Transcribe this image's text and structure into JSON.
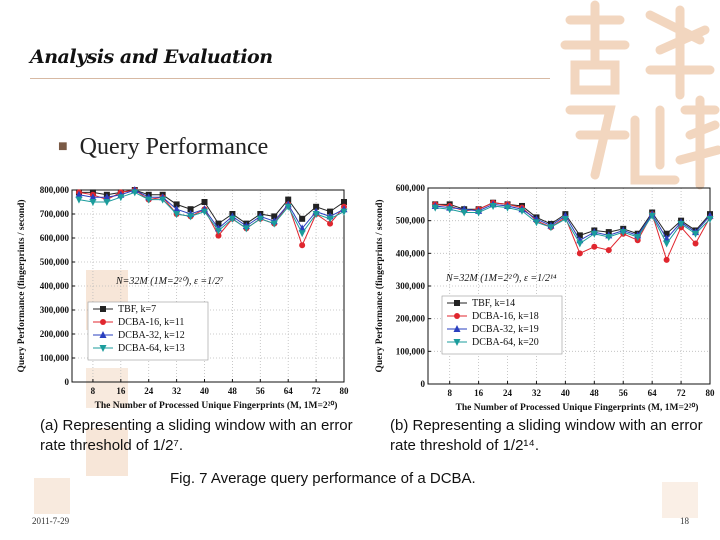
{
  "slide": {
    "title": "Analysis and Evaluation",
    "bullet": "Query Performance",
    "caption_a": "(a)  Representing  a  sliding  window  with an error rate threshold of  1/2⁷.",
    "caption_b": "(b)  Representing  a  sliding  window  with an error rate threshold of  1/2¹⁴.",
    "figure_caption": "Fig. 7  Average query performance of a DCBA.",
    "footer_date": "2011-7-29",
    "page_number": "18"
  },
  "colors": {
    "tbf": "#222222",
    "dcba16": "#e0262e",
    "dcba32": "#2a3fbf",
    "dcba64": "#1b9c9c",
    "accent_deco": "#f2d6bf"
  },
  "chart_data": [
    {
      "type": "line",
      "annotation": "N=32M (1M=2²⁰), ε =1/2⁷",
      "xlabel": "The Number of Processed Unique Fingerprints (M, 1M=2²⁰)",
      "ylabel": "Query Performance (fingerprints / second)",
      "xlim": [
        2,
        80
      ],
      "ylim": [
        0,
        800000
      ],
      "xticks": [
        "8",
        "16",
        "24",
        "32",
        "40",
        "48",
        "56",
        "64",
        "72",
        "80"
      ],
      "yticks": [
        "0",
        "100,000",
        "200,000",
        "300,000",
        "400,000",
        "500,000",
        "600,000",
        "700,000",
        "800,000"
      ],
      "legend_position": "bottom-left",
      "x": [
        4,
        8,
        12,
        16,
        20,
        24,
        28,
        32,
        36,
        40,
        44,
        48,
        52,
        56,
        60,
        64,
        68,
        72,
        76,
        80
      ],
      "series": [
        {
          "name": "TBF, k=7",
          "marker": "square",
          "values": [
            790000,
            790000,
            780000,
            790000,
            800000,
            780000,
            780000,
            740000,
            720000,
            750000,
            660000,
            700000,
            660000,
            700000,
            690000,
            760000,
            680000,
            730000,
            710000,
            750000
          ]
        },
        {
          "name": "DCBA-16, k=11",
          "marker": "circle",
          "values": [
            790000,
            780000,
            760000,
            790000,
            800000,
            760000,
            770000,
            700000,
            690000,
            720000,
            610000,
            680000,
            640000,
            680000,
            660000,
            740000,
            570000,
            700000,
            660000,
            730000
          ]
        },
        {
          "name": "DCBA-32, k=12",
          "marker": "triangle-up",
          "values": [
            780000,
            770000,
            770000,
            780000,
            800000,
            770000,
            770000,
            720000,
            700000,
            720000,
            640000,
            690000,
            650000,
            690000,
            670000,
            740000,
            640000,
            710000,
            690000,
            720000
          ]
        },
        {
          "name": "DCBA-64, k=13",
          "marker": "triangle-down",
          "values": [
            760000,
            750000,
            750000,
            770000,
            790000,
            760000,
            760000,
            700000,
            690000,
            710000,
            630000,
            680000,
            640000,
            680000,
            660000,
            730000,
            620000,
            700000,
            680000,
            710000
          ]
        }
      ]
    },
    {
      "type": "line",
      "annotation": "N=32M (1M=2²⁰), ε =1/2¹⁴",
      "xlabel": "The Number of Processed Unique Fingerprints (M, 1M=2²⁰)",
      "ylabel": "Query Performance (fingerprints / second)",
      "xlim": [
        2,
        80
      ],
      "ylim": [
        0,
        600000
      ],
      "xticks": [
        "8",
        "16",
        "24",
        "32",
        "40",
        "48",
        "56",
        "64",
        "72",
        "80"
      ],
      "yticks": [
        "0",
        "100,000",
        "200,000",
        "300,000",
        "400,000",
        "500,000",
        "600,000"
      ],
      "legend_position": "bottom-left",
      "x": [
        4,
        8,
        12,
        16,
        20,
        24,
        28,
        32,
        36,
        40,
        44,
        48,
        52,
        56,
        60,
        64,
        68,
        72,
        76,
        80
      ],
      "series": [
        {
          "name": "TBF, k=14",
          "marker": "square",
          "values": [
            550000,
            550000,
            535000,
            535000,
            555000,
            550000,
            545000,
            510000,
            490000,
            520000,
            455000,
            470000,
            465000,
            475000,
            460000,
            525000,
            460000,
            500000,
            470000,
            520000
          ]
        },
        {
          "name": "DCBA-16, k=18",
          "marker": "circle",
          "values": [
            550000,
            545000,
            530000,
            535000,
            555000,
            550000,
            540000,
            500000,
            480000,
            510000,
            400000,
            420000,
            410000,
            460000,
            440000,
            520000,
            380000,
            480000,
            430000,
            510000
          ]
        },
        {
          "name": "DCBA-32, k=19",
          "marker": "triangle-up",
          "values": [
            545000,
            540000,
            535000,
            530000,
            550000,
            545000,
            535000,
            505000,
            485000,
            515000,
            440000,
            465000,
            455000,
            470000,
            455000,
            520000,
            445000,
            495000,
            465000,
            515000
          ]
        },
        {
          "name": "DCBA-64, k=20",
          "marker": "triangle-down",
          "values": [
            540000,
            535000,
            525000,
            525000,
            545000,
            540000,
            530000,
            495000,
            480000,
            505000,
            430000,
            460000,
            450000,
            465000,
            450000,
            515000,
            430000,
            490000,
            460000,
            505000
          ]
        }
      ]
    }
  ]
}
